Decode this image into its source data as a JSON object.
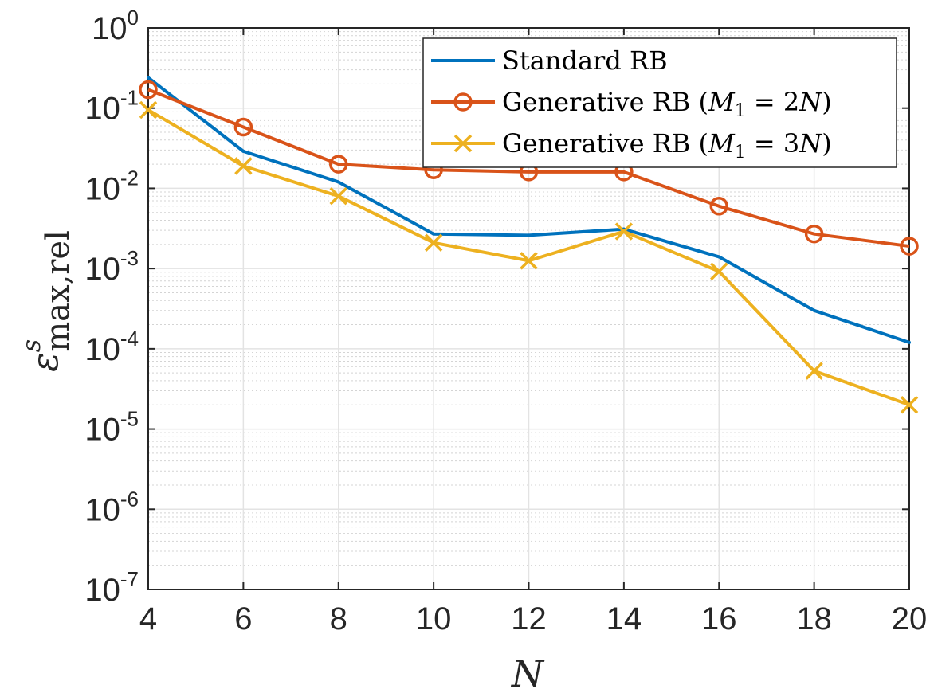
{
  "chart_data": {
    "type": "line",
    "x": [
      4,
      6,
      8,
      10,
      12,
      14,
      16,
      18,
      20
    ],
    "xlim": [
      4,
      20
    ],
    "xticks": [
      4,
      6,
      8,
      10,
      12,
      14,
      16,
      18,
      20
    ],
    "xlabel": "N",
    "ylabel": {
      "base": "ε",
      "sup": "s",
      "sub": "max,rel"
    },
    "yscale": "log",
    "ylim": [
      1e-07,
      1
    ],
    "yticks": [
      {
        "value": 1,
        "base": "10",
        "exp": "0"
      },
      {
        "value": 0.1,
        "base": "10",
        "exp": "-1"
      },
      {
        "value": 0.01,
        "base": "10",
        "exp": "-2"
      },
      {
        "value": 0.001,
        "base": "10",
        "exp": "-3"
      },
      {
        "value": 0.0001,
        "base": "10",
        "exp": "-4"
      },
      {
        "value": 1e-05,
        "base": "10",
        "exp": "-5"
      },
      {
        "value": 1e-06,
        "base": "10",
        "exp": "-6"
      },
      {
        "value": 1e-07,
        "base": "10",
        "exp": "-7"
      }
    ],
    "grid": true,
    "minor_grid": true,
    "legend_position": "top-right",
    "series": [
      {
        "name": "Standard RB",
        "legend": [
          {
            "t": "Standard RB"
          }
        ],
        "color": "#0072BD",
        "marker": "none",
        "values": [
          0.24,
          0.029,
          0.012,
          0.0027,
          0.0026,
          0.0031,
          0.0014,
          0.0003,
          0.00012
        ]
      },
      {
        "name": "Generative RB (M1 = 2N)",
        "legend": [
          {
            "t": "Generative RB ("
          },
          {
            "t": "M",
            "i": true
          },
          {
            "t": "1",
            "sub": true
          },
          {
            "t": " = 2"
          },
          {
            "t": "N",
            "i": true
          },
          {
            "t": ")"
          }
        ],
        "color": "#D95319",
        "marker": "circle",
        "values": [
          0.17,
          0.058,
          0.02,
          0.017,
          0.016,
          0.016,
          0.006,
          0.0027,
          0.0019
        ]
      },
      {
        "name": "Generative RB (M1 = 3N)",
        "legend": [
          {
            "t": "Generative RB ("
          },
          {
            "t": "M",
            "i": true
          },
          {
            "t": "1",
            "sub": true
          },
          {
            "t": " = 3"
          },
          {
            "t": "N",
            "i": true
          },
          {
            "t": ")"
          }
        ],
        "color": "#EDB120",
        "marker": "x",
        "values": [
          0.095,
          0.019,
          0.008,
          0.0021,
          0.00125,
          0.0029,
          0.00092,
          5.3e-05,
          2e-05
        ]
      }
    ]
  }
}
